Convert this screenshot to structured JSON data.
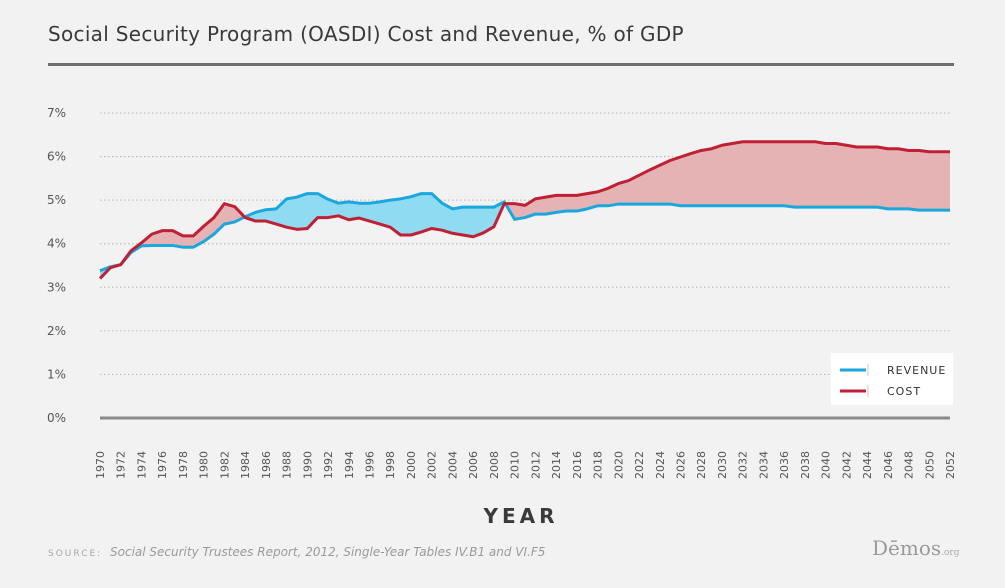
{
  "title": "Social Security Program (OASDI) Cost and Revenue, % of GDP",
  "source_label": "SOURCE:",
  "source_text": "Social Security Trustees Report, 2012, Single-Year Tables IV.B1 and VI.F5",
  "logo": {
    "name": "Dēmos",
    "suffix": ".org"
  },
  "colors": {
    "revenue": "#1aa7dd",
    "cost": "#bf2035",
    "revenue_fill": "#8fdbf2",
    "cost_fill": "#e5b3b3",
    "background": "#f2f2f2"
  },
  "chart_data": {
    "type": "line",
    "xlabel": "YEAR",
    "ylabel": "",
    "xlim": [
      1970,
      2052
    ],
    "ylim": [
      0,
      7
    ],
    "yticks": [
      "0%",
      "1%",
      "2%",
      "3%",
      "4%",
      "5%",
      "6%",
      "7%"
    ],
    "xticks": [
      "1970",
      "1972",
      "1974",
      "1976",
      "1978",
      "1980",
      "1982",
      "1984",
      "1986",
      "1988",
      "1990",
      "1992",
      "1994",
      "1996",
      "1998",
      "2000",
      "2002",
      "2004",
      "2006",
      "2008",
      "2010",
      "2012",
      "2014",
      "2016",
      "2018",
      "2020",
      "2022",
      "2024",
      "2026",
      "2028",
      "2030",
      "2032",
      "2034",
      "2036",
      "2038",
      "2040",
      "2042",
      "2044",
      "2046",
      "2048",
      "2050",
      "2052"
    ],
    "legend": {
      "placement": "bottom-right",
      "entries": [
        "REVENUE",
        "COST"
      ]
    },
    "grid": true,
    "x": [
      1970,
      1971,
      1972,
      1973,
      1974,
      1975,
      1976,
      1977,
      1978,
      1979,
      1980,
      1981,
      1982,
      1983,
      1984,
      1985,
      1986,
      1987,
      1988,
      1989,
      1990,
      1991,
      1992,
      1993,
      1994,
      1995,
      1996,
      1997,
      1998,
      1999,
      2000,
      2001,
      2002,
      2003,
      2004,
      2005,
      2006,
      2007,
      2008,
      2009,
      2010,
      2011,
      2012,
      2013,
      2014,
      2015,
      2016,
      2017,
      2018,
      2019,
      2020,
      2021,
      2022,
      2023,
      2024,
      2025,
      2026,
      2027,
      2028,
      2029,
      2030,
      2031,
      2032,
      2033,
      2034,
      2035,
      2036,
      2037,
      2038,
      2039,
      2040,
      2041,
      2042,
      2043,
      2044,
      2045,
      2046,
      2047,
      2048,
      2049,
      2050,
      2051,
      2052
    ],
    "series": [
      {
        "name": "REVENUE",
        "values": [
          3.38,
          3.47,
          3.52,
          3.8,
          3.95,
          3.96,
          3.96,
          3.96,
          3.92,
          3.92,
          4.05,
          4.22,
          4.45,
          4.5,
          4.62,
          4.72,
          4.78,
          4.8,
          5.03,
          5.07,
          5.15,
          5.15,
          5.02,
          4.93,
          4.96,
          4.93,
          4.93,
          4.96,
          5.0,
          5.03,
          5.08,
          5.15,
          5.15,
          4.93,
          4.8,
          4.84,
          4.84,
          4.84,
          4.84,
          4.96,
          4.56,
          4.6,
          4.68,
          4.68,
          4.72,
          4.75,
          4.75,
          4.8,
          4.87,
          4.87,
          4.91,
          4.91,
          4.91,
          4.91,
          4.91,
          4.91,
          4.87,
          4.87,
          4.87,
          4.87,
          4.87,
          4.87,
          4.87,
          4.87,
          4.87,
          4.87,
          4.87,
          4.84,
          4.84,
          4.84,
          4.84,
          4.84,
          4.84,
          4.84,
          4.84,
          4.84,
          4.8,
          4.8,
          4.8,
          4.77,
          4.77,
          4.77,
          4.77
        ]
      },
      {
        "name": "COST",
        "values": [
          3.2,
          3.45,
          3.52,
          3.84,
          4.02,
          4.22,
          4.3,
          4.3,
          4.18,
          4.18,
          4.4,
          4.6,
          4.92,
          4.85,
          4.6,
          4.52,
          4.52,
          4.45,
          4.38,
          4.33,
          4.35,
          4.6,
          4.6,
          4.64,
          4.55,
          4.59,
          4.52,
          4.45,
          4.38,
          4.2,
          4.2,
          4.27,
          4.35,
          4.31,
          4.24,
          4.2,
          4.16,
          4.25,
          4.39,
          4.92,
          4.92,
          4.88,
          5.03,
          5.07,
          5.11,
          5.11,
          5.11,
          5.15,
          5.19,
          5.27,
          5.38,
          5.45,
          5.57,
          5.69,
          5.8,
          5.91,
          5.99,
          6.07,
          6.14,
          6.18,
          6.26,
          6.3,
          6.34,
          6.34,
          6.34,
          6.34,
          6.34,
          6.34,
          6.34,
          6.34,
          6.3,
          6.3,
          6.26,
          6.22,
          6.22,
          6.22,
          6.18,
          6.18,
          6.14,
          6.14,
          6.11,
          6.11,
          6.11
        ]
      }
    ]
  }
}
